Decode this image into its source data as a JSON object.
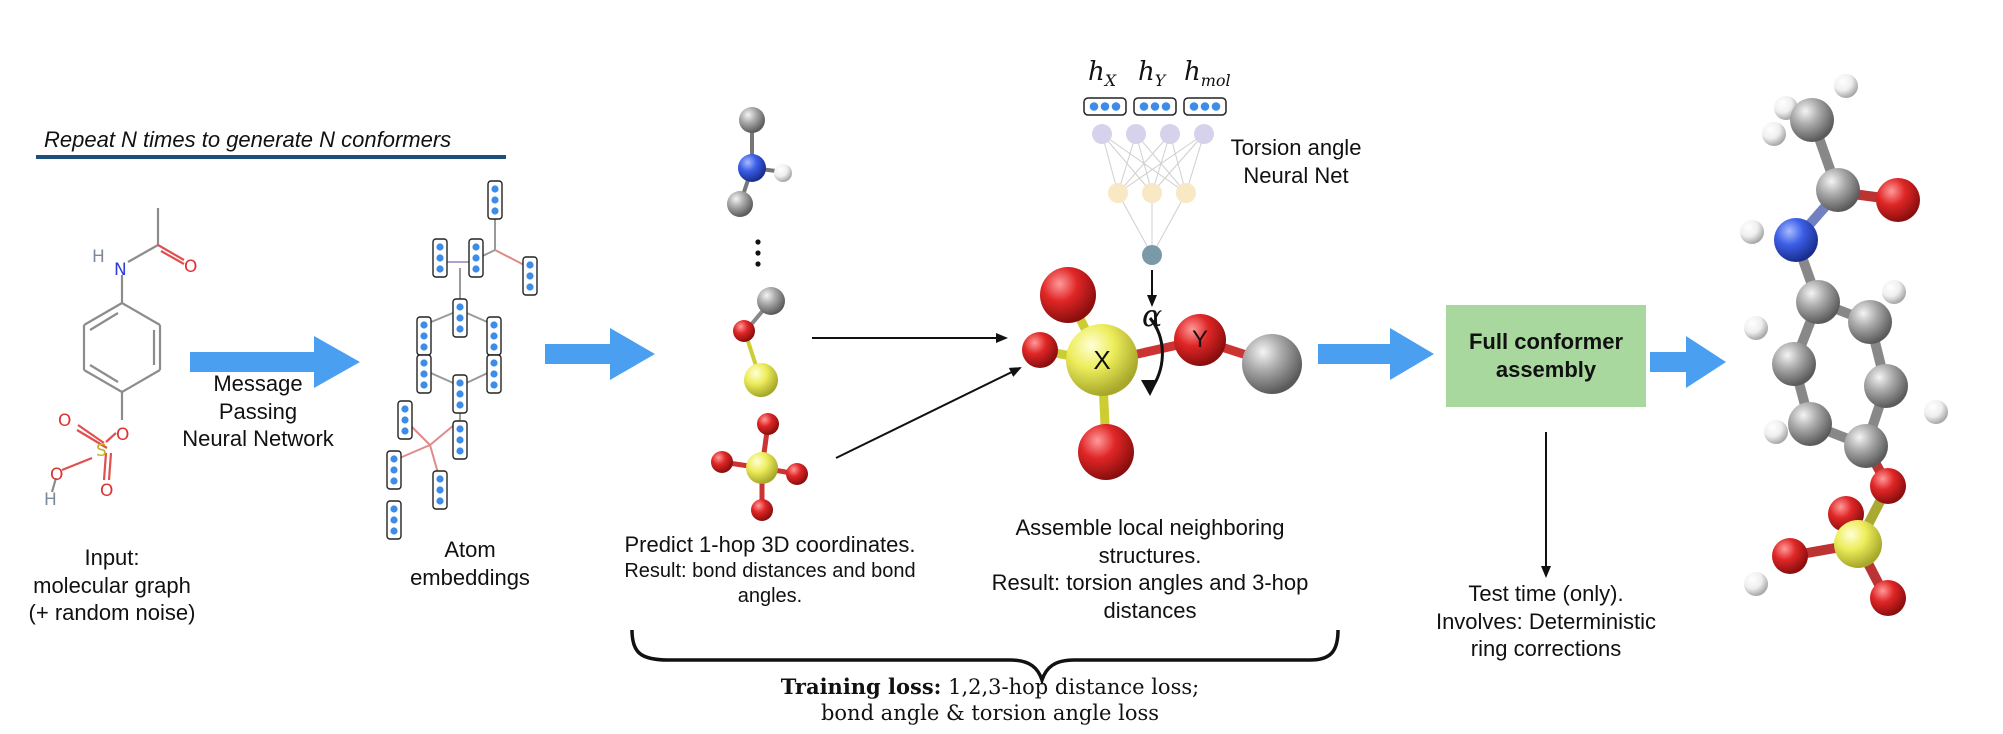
{
  "repeat_banner": "Repeat N times to generate N conformers",
  "mpnn_label": [
    "Message",
    "Passing",
    "Neural Network"
  ],
  "input_caption": [
    "Input:",
    "molecular graph",
    "(+ random noise)"
  ],
  "embeddings_caption": [
    "Atom",
    "embeddings"
  ],
  "predict_caption": {
    "line1": "Predict 1-hop 3D coordinates.",
    "line2": "Result: bond distances and bond",
    "line3": "angles."
  },
  "assemble_caption": [
    "Assemble local neighboring",
    "structures.",
    "Result: torsion angles and 3-hop",
    "distances"
  ],
  "torsion_net_label": [
    "Torsion angle",
    "Neural Net"
  ],
  "h_labels": {
    "hx": "h",
    "hx_sub": "X",
    "hy": "h",
    "hy_sub": "Y",
    "hmol": "h",
    "hmol_sub": "mol"
  },
  "alpha": "α",
  "atom_x": "X",
  "atom_y": "Y",
  "full_conformer_box": [
    "Full conformer",
    "assembly"
  ],
  "test_time_caption": [
    "Test time (only).",
    "Involves: Deterministic",
    "ring corrections"
  ],
  "training_loss": {
    "bold": "Training loss:",
    "line1_rest": " 1,2,3-hop distance loss;",
    "line2": "bond angle & torsion angle loss"
  },
  "graph_atom_labels": {
    "H": "H",
    "N": "N",
    "O": "O",
    "S": "S",
    "OH_O": "O",
    "OH_H": "H"
  },
  "colors": {
    "arrow_blue": "#4a9ff0",
    "embedding_blue": "#3d8de8",
    "banner_underline": "#1c4f7c",
    "box_green": "#a8d89e",
    "carbon_gray": "#9a9a9a",
    "oxygen_red": "#e02020",
    "sulfur_yellow": "#ecec5a",
    "nitrogen_blue": "#3a5fe0",
    "hydrogen_white": "#f2f2f2"
  }
}
